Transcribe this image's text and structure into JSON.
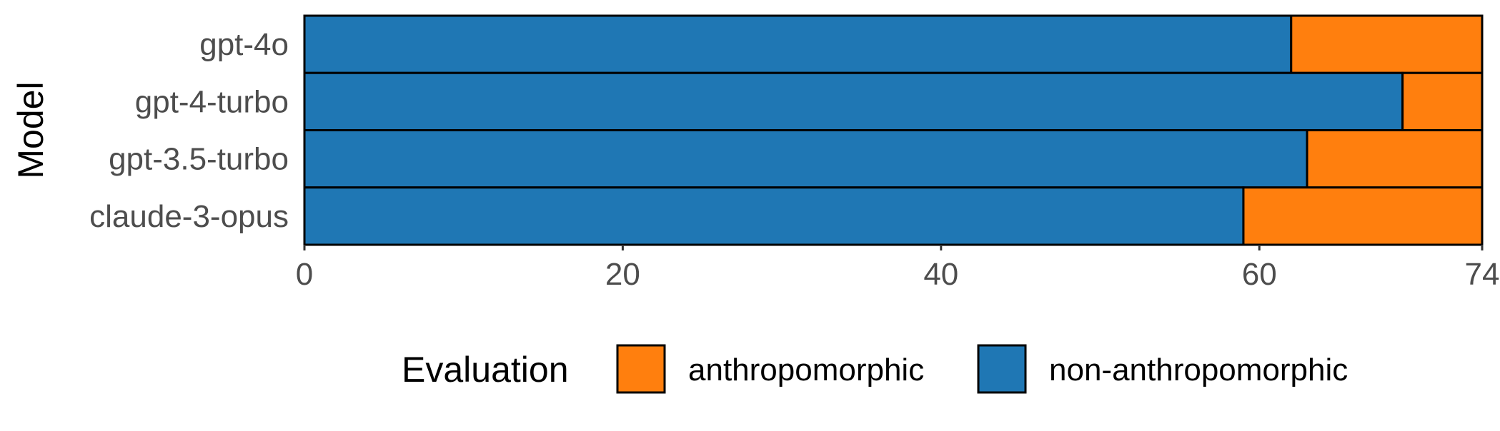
{
  "chart_data": {
    "type": "bar",
    "orientation": "horizontal",
    "stacked": true,
    "categories": [
      "gpt-4o",
      "gpt-4-turbo",
      "gpt-3.5-turbo",
      "claude-3-opus"
    ],
    "series": [
      {
        "name": "non-anthropomorphic",
        "color": "#1F77B4",
        "values": [
          62,
          69,
          63,
          59
        ]
      },
      {
        "name": "anthropomorphic",
        "color": "#FF7F0E",
        "values": [
          12,
          5,
          11,
          15
        ]
      }
    ],
    "xlabel": "",
    "ylabel": "Model",
    "xlim": [
      0,
      74
    ],
    "xticks": [
      0,
      20,
      40,
      60,
      74
    ],
    "grid": false,
    "legend": {
      "title": "Evaluation",
      "position": "bottom",
      "entries": [
        "anthropomorphic",
        "non-anthropomorphic"
      ]
    }
  }
}
